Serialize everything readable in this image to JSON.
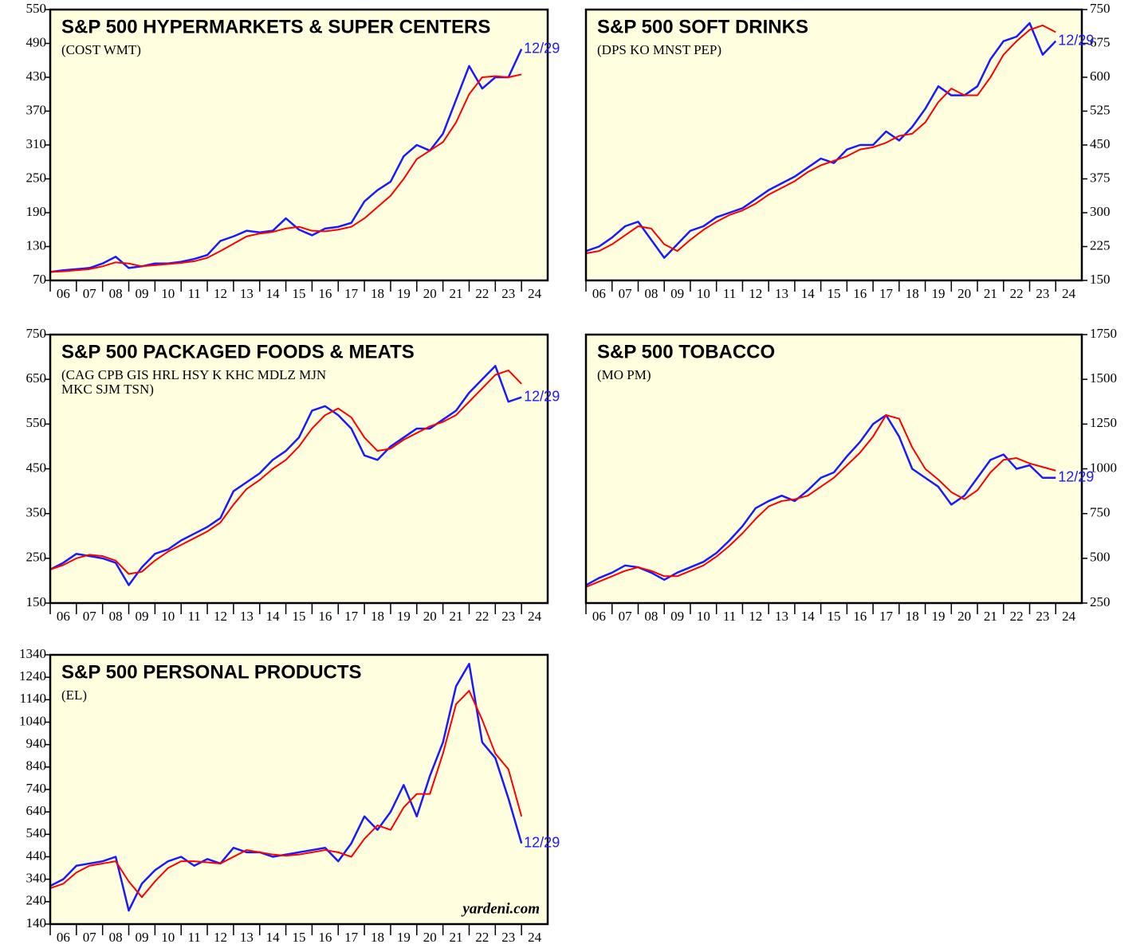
{
  "chart_data": [
    {
      "type": "line",
      "title": "S&P 500 HYPERMARKETS & SUPER CENTERS",
      "subtitle": [
        "(COST WMT)"
      ],
      "annotation": "12/29",
      "y_axis": "left",
      "x": [
        2006,
        2006.5,
        2007,
        2007.5,
        2008,
        2008.5,
        2009,
        2009.5,
        2010,
        2010.5,
        2011,
        2011.5,
        2012,
        2012.5,
        2013,
        2013.5,
        2014,
        2014.5,
        2015,
        2015.5,
        2016,
        2016.5,
        2017,
        2017.5,
        2018,
        2018.5,
        2019,
        2019.5,
        2020,
        2020.5,
        2021,
        2021.5,
        2022,
        2022.5,
        2023,
        2023.5,
        2024
      ],
      "series": [
        {
          "color": "#1a1aff",
          "values": [
            85,
            88,
            90,
            92,
            100,
            112,
            92,
            95,
            100,
            100,
            103,
            108,
            115,
            140,
            148,
            158,
            155,
            158,
            180,
            160,
            150,
            162,
            165,
            172,
            210,
            230,
            245,
            290,
            310,
            300,
            330,
            390,
            450,
            410,
            430,
            430,
            480
          ]
        },
        {
          "color": "#ff0000",
          "values": [
            85,
            86,
            88,
            90,
            95,
            102,
            100,
            95,
            97,
            99,
            101,
            104,
            110,
            122,
            135,
            148,
            153,
            156,
            162,
            165,
            158,
            157,
            160,
            165,
            180,
            200,
            220,
            250,
            285,
            300,
            315,
            350,
            400,
            430,
            432,
            430,
            435
          ]
        }
      ],
      "xlim": [
        2006,
        2025
      ],
      "ylim": [
        70,
        550
      ],
      "yticks": [
        70,
        130,
        190,
        250,
        310,
        370,
        430,
        490,
        550
      ],
      "xticks": [
        {
          "value": 2006,
          "label": "06"
        },
        {
          "value": 2007,
          "label": "07"
        },
        {
          "value": 2008,
          "label": "08"
        },
        {
          "value": 2009,
          "label": "09"
        },
        {
          "value": 2010,
          "label": "10"
        },
        {
          "value": 2011,
          "label": "11"
        },
        {
          "value": 2012,
          "label": "12"
        },
        {
          "value": 2013,
          "label": "13"
        },
        {
          "value": 2014,
          "label": "14"
        },
        {
          "value": 2015,
          "label": "15"
        },
        {
          "value": 2016,
          "label": "16"
        },
        {
          "value": 2017,
          "label": "17"
        },
        {
          "value": 2018,
          "label": "18"
        },
        {
          "value": 2019,
          "label": "19"
        },
        {
          "value": 2020,
          "label": "20"
        },
        {
          "value": 2021,
          "label": "21"
        },
        {
          "value": 2022,
          "label": "22"
        },
        {
          "value": 2023,
          "label": "23"
        },
        {
          "value": 2024,
          "label": "24"
        }
      ]
    },
    {
      "type": "line",
      "title": "S&P 500 SOFT DRINKS",
      "subtitle": [
        "(DPS KO MNST PEP)"
      ],
      "annotation": "12/29",
      "y_axis": "right",
      "x": [
        2006,
        2006.5,
        2007,
        2007.5,
        2008,
        2008.5,
        2009,
        2009.5,
        2010,
        2010.5,
        2011,
        2011.5,
        2012,
        2012.5,
        2013,
        2013.5,
        2014,
        2014.5,
        2015,
        2015.5,
        2016,
        2016.5,
        2017,
        2017.5,
        2018,
        2018.5,
        2019,
        2019.5,
        2020,
        2020.5,
        2021,
        2021.5,
        2022,
        2022.5,
        2023,
        2023.5,
        2024
      ],
      "series": [
        {
          "color": "#1a1aff",
          "values": [
            215,
            225,
            245,
            270,
            280,
            240,
            200,
            230,
            260,
            270,
            290,
            300,
            310,
            330,
            350,
            365,
            380,
            400,
            420,
            410,
            440,
            450,
            450,
            480,
            460,
            490,
            530,
            580,
            560,
            560,
            580,
            640,
            680,
            690,
            720,
            650,
            680
          ]
        },
        {
          "color": "#ff0000",
          "values": [
            210,
            215,
            230,
            250,
            270,
            265,
            230,
            215,
            240,
            262,
            280,
            295,
            305,
            320,
            340,
            355,
            370,
            390,
            405,
            415,
            425,
            440,
            445,
            455,
            470,
            475,
            500,
            545,
            575,
            560,
            560,
            600,
            650,
            680,
            705,
            715,
            700
          ]
        }
      ],
      "xlim": [
        2006,
        2025
      ],
      "ylim": [
        150,
        750
      ],
      "yticks": [
        150,
        225,
        300,
        375,
        450,
        525,
        600,
        675,
        750
      ],
      "xticks": [
        {
          "value": 2006,
          "label": "06"
        },
        {
          "value": 2007,
          "label": "07"
        },
        {
          "value": 2008,
          "label": "08"
        },
        {
          "value": 2009,
          "label": "09"
        },
        {
          "value": 2010,
          "label": "10"
        },
        {
          "value": 2011,
          "label": "11"
        },
        {
          "value": 2012,
          "label": "12"
        },
        {
          "value": 2013,
          "label": "13"
        },
        {
          "value": 2014,
          "label": "14"
        },
        {
          "value": 2015,
          "label": "15"
        },
        {
          "value": 2016,
          "label": "16"
        },
        {
          "value": 2017,
          "label": "17"
        },
        {
          "value": 2018,
          "label": "18"
        },
        {
          "value": 2019,
          "label": "19"
        },
        {
          "value": 2020,
          "label": "20"
        },
        {
          "value": 2021,
          "label": "21"
        },
        {
          "value": 2022,
          "label": "22"
        },
        {
          "value": 2023,
          "label": "23"
        },
        {
          "value": 2024,
          "label": "24"
        }
      ]
    },
    {
      "type": "line",
      "title": "S&P 500 PACKAGED FOODS & MEATS",
      "subtitle": [
        "(CAG CPB GIS HRL HSY K KHC MDLZ MJN",
        "MKC SJM TSN)"
      ],
      "annotation": "12/29",
      "y_axis": "left",
      "x": [
        2006,
        2006.5,
        2007,
        2007.5,
        2008,
        2008.5,
        2009,
        2009.5,
        2010,
        2010.5,
        2011,
        2011.5,
        2012,
        2012.5,
        2013,
        2013.5,
        2014,
        2014.5,
        2015,
        2015.5,
        2016,
        2016.5,
        2017,
        2017.5,
        2018,
        2018.5,
        2019,
        2019.5,
        2020,
        2020.5,
        2021,
        2021.5,
        2022,
        2022.5,
        2023,
        2023.5,
        2024
      ],
      "series": [
        {
          "color": "#1a1aff",
          "values": [
            225,
            240,
            260,
            255,
            250,
            240,
            190,
            230,
            260,
            270,
            290,
            305,
            320,
            340,
            400,
            420,
            440,
            470,
            490,
            520,
            580,
            590,
            570,
            540,
            480,
            470,
            500,
            520,
            540,
            540,
            560,
            580,
            620,
            650,
            680,
            600,
            610
          ]
        },
        {
          "color": "#ff0000",
          "values": [
            225,
            235,
            250,
            258,
            255,
            245,
            215,
            220,
            245,
            265,
            280,
            295,
            310,
            330,
            370,
            405,
            425,
            450,
            470,
            500,
            540,
            570,
            585,
            565,
            520,
            490,
            495,
            515,
            530,
            545,
            555,
            570,
            600,
            630,
            660,
            670,
            640
          ]
        }
      ],
      "xlim": [
        2006,
        2025
      ],
      "ylim": [
        150,
        750
      ],
      "yticks": [
        150,
        250,
        350,
        450,
        550,
        650,
        750
      ],
      "xticks": [
        {
          "value": 2006,
          "label": "06"
        },
        {
          "value": 2007,
          "label": "07"
        },
        {
          "value": 2008,
          "label": "08"
        },
        {
          "value": 2009,
          "label": "09"
        },
        {
          "value": 2010,
          "label": "10"
        },
        {
          "value": 2011,
          "label": "11"
        },
        {
          "value": 2012,
          "label": "12"
        },
        {
          "value": 2013,
          "label": "13"
        },
        {
          "value": 2014,
          "label": "14"
        },
        {
          "value": 2015,
          "label": "15"
        },
        {
          "value": 2016,
          "label": "16"
        },
        {
          "value": 2017,
          "label": "17"
        },
        {
          "value": 2018,
          "label": "18"
        },
        {
          "value": 2019,
          "label": "19"
        },
        {
          "value": 2020,
          "label": "20"
        },
        {
          "value": 2021,
          "label": "21"
        },
        {
          "value": 2022,
          "label": "22"
        },
        {
          "value": 2023,
          "label": "23"
        },
        {
          "value": 2024,
          "label": "24"
        }
      ]
    },
    {
      "type": "line",
      "title": "S&P 500 TOBACCO",
      "subtitle": [
        "(MO PM)"
      ],
      "annotation": "12/29",
      "y_axis": "right",
      "x": [
        2006,
        2006.5,
        2007,
        2007.5,
        2008,
        2008.5,
        2009,
        2009.5,
        2010,
        2010.5,
        2011,
        2011.5,
        2012,
        2012.5,
        2013,
        2013.5,
        2014,
        2014.5,
        2015,
        2015.5,
        2016,
        2016.5,
        2017,
        2017.5,
        2018,
        2018.5,
        2019,
        2019.5,
        2020,
        2020.5,
        2021,
        2021.5,
        2022,
        2022.5,
        2023,
        2023.5,
        2024
      ],
      "series": [
        {
          "color": "#1a1aff",
          "values": [
            350,
            390,
            420,
            460,
            450,
            420,
            380,
            420,
            450,
            480,
            530,
            600,
            680,
            780,
            820,
            850,
            820,
            880,
            950,
            980,
            1070,
            1150,
            1250,
            1300,
            1180,
            1000,
            950,
            900,
            800,
            850,
            950,
            1050,
            1080,
            1000,
            1020,
            950,
            950
          ]
        },
        {
          "color": "#ff0000",
          "values": [
            340,
            370,
            400,
            430,
            450,
            430,
            400,
            400,
            430,
            460,
            510,
            570,
            640,
            720,
            790,
            820,
            830,
            850,
            900,
            950,
            1020,
            1090,
            1180,
            1300,
            1280,
            1120,
            1000,
            940,
            870,
            830,
            880,
            980,
            1050,
            1060,
            1030,
            1010,
            990
          ]
        }
      ],
      "xlim": [
        2006,
        2025
      ],
      "ylim": [
        250,
        1750
      ],
      "yticks": [
        250,
        500,
        750,
        1000,
        1250,
        1500,
        1750
      ],
      "xticks": [
        {
          "value": 2006,
          "label": "06"
        },
        {
          "value": 2007,
          "label": "07"
        },
        {
          "value": 2008,
          "label": "08"
        },
        {
          "value": 2009,
          "label": "09"
        },
        {
          "value": 2010,
          "label": "10"
        },
        {
          "value": 2011,
          "label": "11"
        },
        {
          "value": 2012,
          "label": "12"
        },
        {
          "value": 2013,
          "label": "13"
        },
        {
          "value": 2014,
          "label": "14"
        },
        {
          "value": 2015,
          "label": "15"
        },
        {
          "value": 2016,
          "label": "16"
        },
        {
          "value": 2017,
          "label": "17"
        },
        {
          "value": 2018,
          "label": "18"
        },
        {
          "value": 2019,
          "label": "19"
        },
        {
          "value": 2020,
          "label": "20"
        },
        {
          "value": 2021,
          "label": "21"
        },
        {
          "value": 2022,
          "label": "22"
        },
        {
          "value": 2023,
          "label": "23"
        },
        {
          "value": 2024,
          "label": "24"
        }
      ]
    },
    {
      "type": "line",
      "title": "S&P 500 PERSONAL PRODUCTS",
      "subtitle": [
        "(EL)"
      ],
      "annotation": "12/29",
      "source": "yardeni.com",
      "y_axis": "left",
      "x": [
        2006,
        2006.5,
        2007,
        2007.5,
        2008,
        2008.5,
        2009,
        2009.5,
        2010,
        2010.5,
        2011,
        2011.5,
        2012,
        2012.5,
        2013,
        2013.5,
        2014,
        2014.5,
        2015,
        2015.5,
        2016,
        2016.5,
        2017,
        2017.5,
        2018,
        2018.5,
        2019,
        2019.5,
        2020,
        2020.5,
        2021,
        2021.5,
        2022,
        2022.5,
        2023,
        2023.5,
        2024
      ],
      "series": [
        {
          "color": "#1a1aff",
          "values": [
            310,
            340,
            400,
            410,
            420,
            440,
            200,
            320,
            380,
            420,
            440,
            400,
            430,
            410,
            480,
            460,
            460,
            440,
            450,
            460,
            470,
            480,
            420,
            500,
            620,
            560,
            640,
            760,
            620,
            800,
            950,
            1200,
            1300,
            950,
            880,
            700,
            500
          ]
        },
        {
          "color": "#ff0000",
          "values": [
            300,
            320,
            370,
            400,
            410,
            420,
            330,
            260,
            330,
            390,
            420,
            420,
            415,
            410,
            440,
            470,
            460,
            450,
            445,
            450,
            460,
            470,
            460,
            440,
            520,
            580,
            560,
            660,
            720,
            720,
            900,
            1120,
            1180,
            1050,
            900,
            830,
            620
          ]
        }
      ],
      "xlim": [
        2006,
        2025
      ],
      "ylim": [
        140,
        1340
      ],
      "yticks": [
        140,
        240,
        340,
        440,
        540,
        640,
        740,
        840,
        940,
        1040,
        1140,
        1240,
        1340
      ],
      "xticks": [
        {
          "value": 2006,
          "label": "06"
        },
        {
          "value": 2007,
          "label": "07"
        },
        {
          "value": 2008,
          "label": "08"
        },
        {
          "value": 2009,
          "label": "09"
        },
        {
          "value": 2010,
          "label": "10"
        },
        {
          "value": 2011,
          "label": "11"
        },
        {
          "value": 2012,
          "label": "12"
        },
        {
          "value": 2013,
          "label": "13"
        },
        {
          "value": 2014,
          "label": "14"
        },
        {
          "value": 2015,
          "label": "15"
        },
        {
          "value": 2016,
          "label": "16"
        },
        {
          "value": 2017,
          "label": "17"
        },
        {
          "value": 2018,
          "label": "18"
        },
        {
          "value": 2019,
          "label": "19"
        },
        {
          "value": 2020,
          "label": "20"
        },
        {
          "value": 2021,
          "label": "21"
        },
        {
          "value": 2022,
          "label": "22"
        },
        {
          "value": 2023,
          "label": "23"
        },
        {
          "value": 2024,
          "label": "24"
        }
      ]
    }
  ]
}
